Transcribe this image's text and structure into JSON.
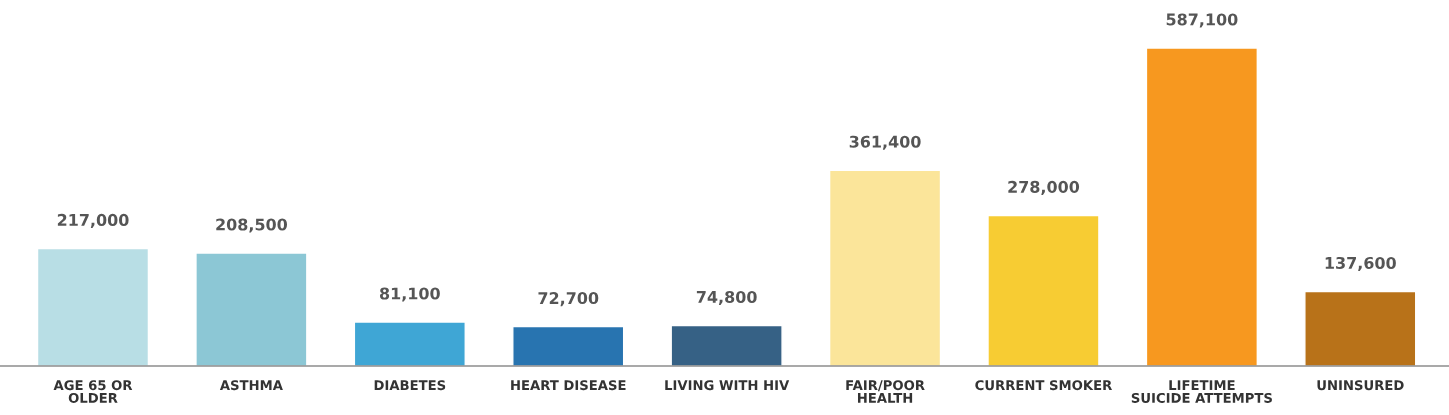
{
  "chart_data": {
    "type": "bar",
    "categories": [
      "AGE 65 OR\nOLDER",
      "ASTHMA",
      "DIABETES",
      "HEART DISEASE",
      "LIVING WITH HIV",
      "FAIR/POOR\nHEALTH",
      "CURRENT SMOKER",
      "LIFETIME\nSUICIDE ATTEMPTS",
      "UNINSURED"
    ],
    "values": [
      217000,
      208500,
      81100,
      72700,
      74800,
      361400,
      278000,
      587100,
      137600
    ],
    "colors": [
      "#b8dee5",
      "#8cc7d5",
      "#3fa6d5",
      "#2874b0",
      "#366185",
      "#fbe59a",
      "#f7cc33",
      "#f7981f",
      "#b87219"
    ],
    "value_labels": [
      "217,000",
      "208,500",
      "81,100",
      "72,700",
      "74,800",
      "361,400",
      "278,000",
      "587,100",
      "137,600"
    ],
    "grid": false,
    "legend": false
  }
}
